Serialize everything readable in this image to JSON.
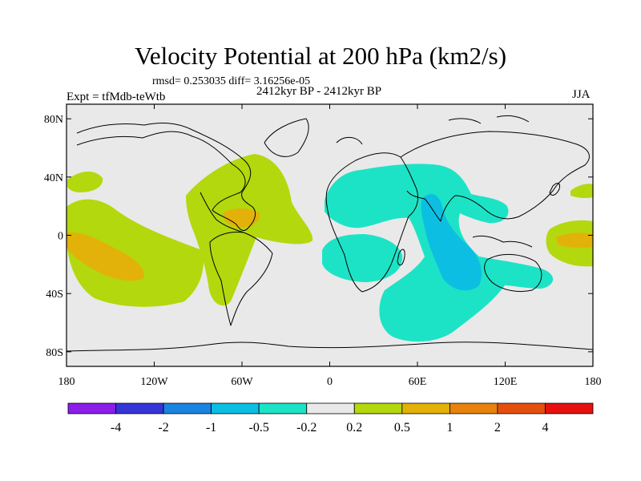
{
  "title": "Velocity Potential at 200 hPa (km2/s)",
  "stats": "rmsd= 0.253035 diff= 3.16256e-05",
  "period": "2412kyr BP - 2412kyr BP",
  "experiment": "Expt = tfMdb-teWtb",
  "season": "JJA",
  "lat_labels": [
    "80N",
    "40N",
    "0",
    "40S",
    "80S"
  ],
  "lon_labels": [
    "180",
    "120W",
    "60W",
    "0",
    "60E",
    "120E",
    "180"
  ],
  "colorbar": {
    "labels": [
      "-4",
      "-2",
      "-1",
      "-0.5",
      "-0.2",
      "0.2",
      "0.5",
      "1",
      "2",
      "4"
    ],
    "colors": [
      "#8b1ee8",
      "#3535d8",
      "#1a84e0",
      "#0cbfe2",
      "#1de3c6",
      "#e9e9e9",
      "#b3d80e",
      "#e2b20a",
      "#e7820c",
      "#e54f0e",
      "#e61010"
    ]
  },
  "fill_colors": {
    "background": "#e9e9e9",
    "positive_weak": "#b3d80e",
    "positive_mid": "#e2b20a",
    "negative_weak": "#1de3c6",
    "negative_mid": "#0cbfe2"
  }
}
